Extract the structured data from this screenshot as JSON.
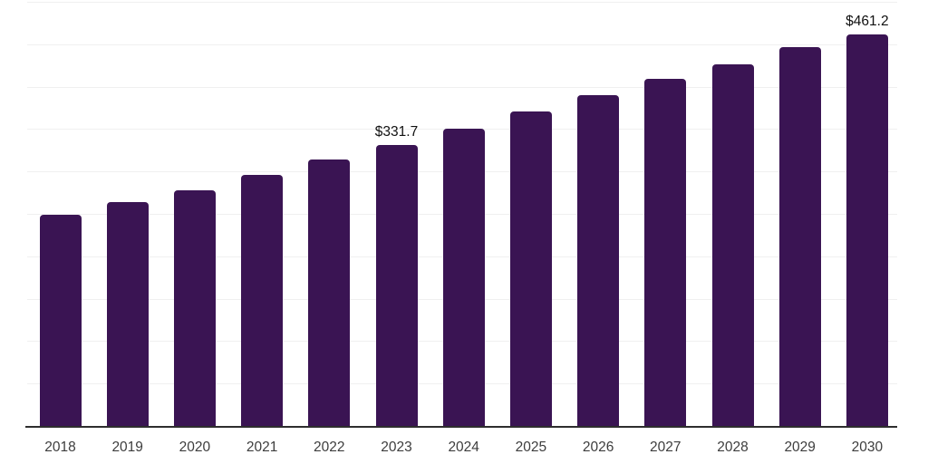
{
  "chart_data": {
    "type": "bar",
    "title": "",
    "xlabel": "",
    "ylabel": "",
    "categories": [
      "2018",
      "2019",
      "2020",
      "2021",
      "2022",
      "2023",
      "2024",
      "2025",
      "2026",
      "2027",
      "2028",
      "2029",
      "2030"
    ],
    "values": [
      248.5,
      264.4,
      278.3,
      295.8,
      313.7,
      331.7,
      350.4,
      370.3,
      389.8,
      409.2,
      426.4,
      446.5,
      461.2
    ],
    "annotations": [
      {
        "category": "2023",
        "text": "$331.7"
      },
      {
        "category": "2030",
        "text": "$461.2"
      }
    ],
    "ylim": [
      0,
      500
    ],
    "gridline_step": 50,
    "grid": "horizontal-only",
    "legend": "none",
    "y_tick_labels_visible": false,
    "colors": {
      "bar": "#3a1453",
      "gridline": "#f0f0f0",
      "axis_line": "#2e2e2e",
      "tick_label": "#3d3d3d",
      "value_label": "#111111",
      "background": "#ffffff"
    }
  }
}
